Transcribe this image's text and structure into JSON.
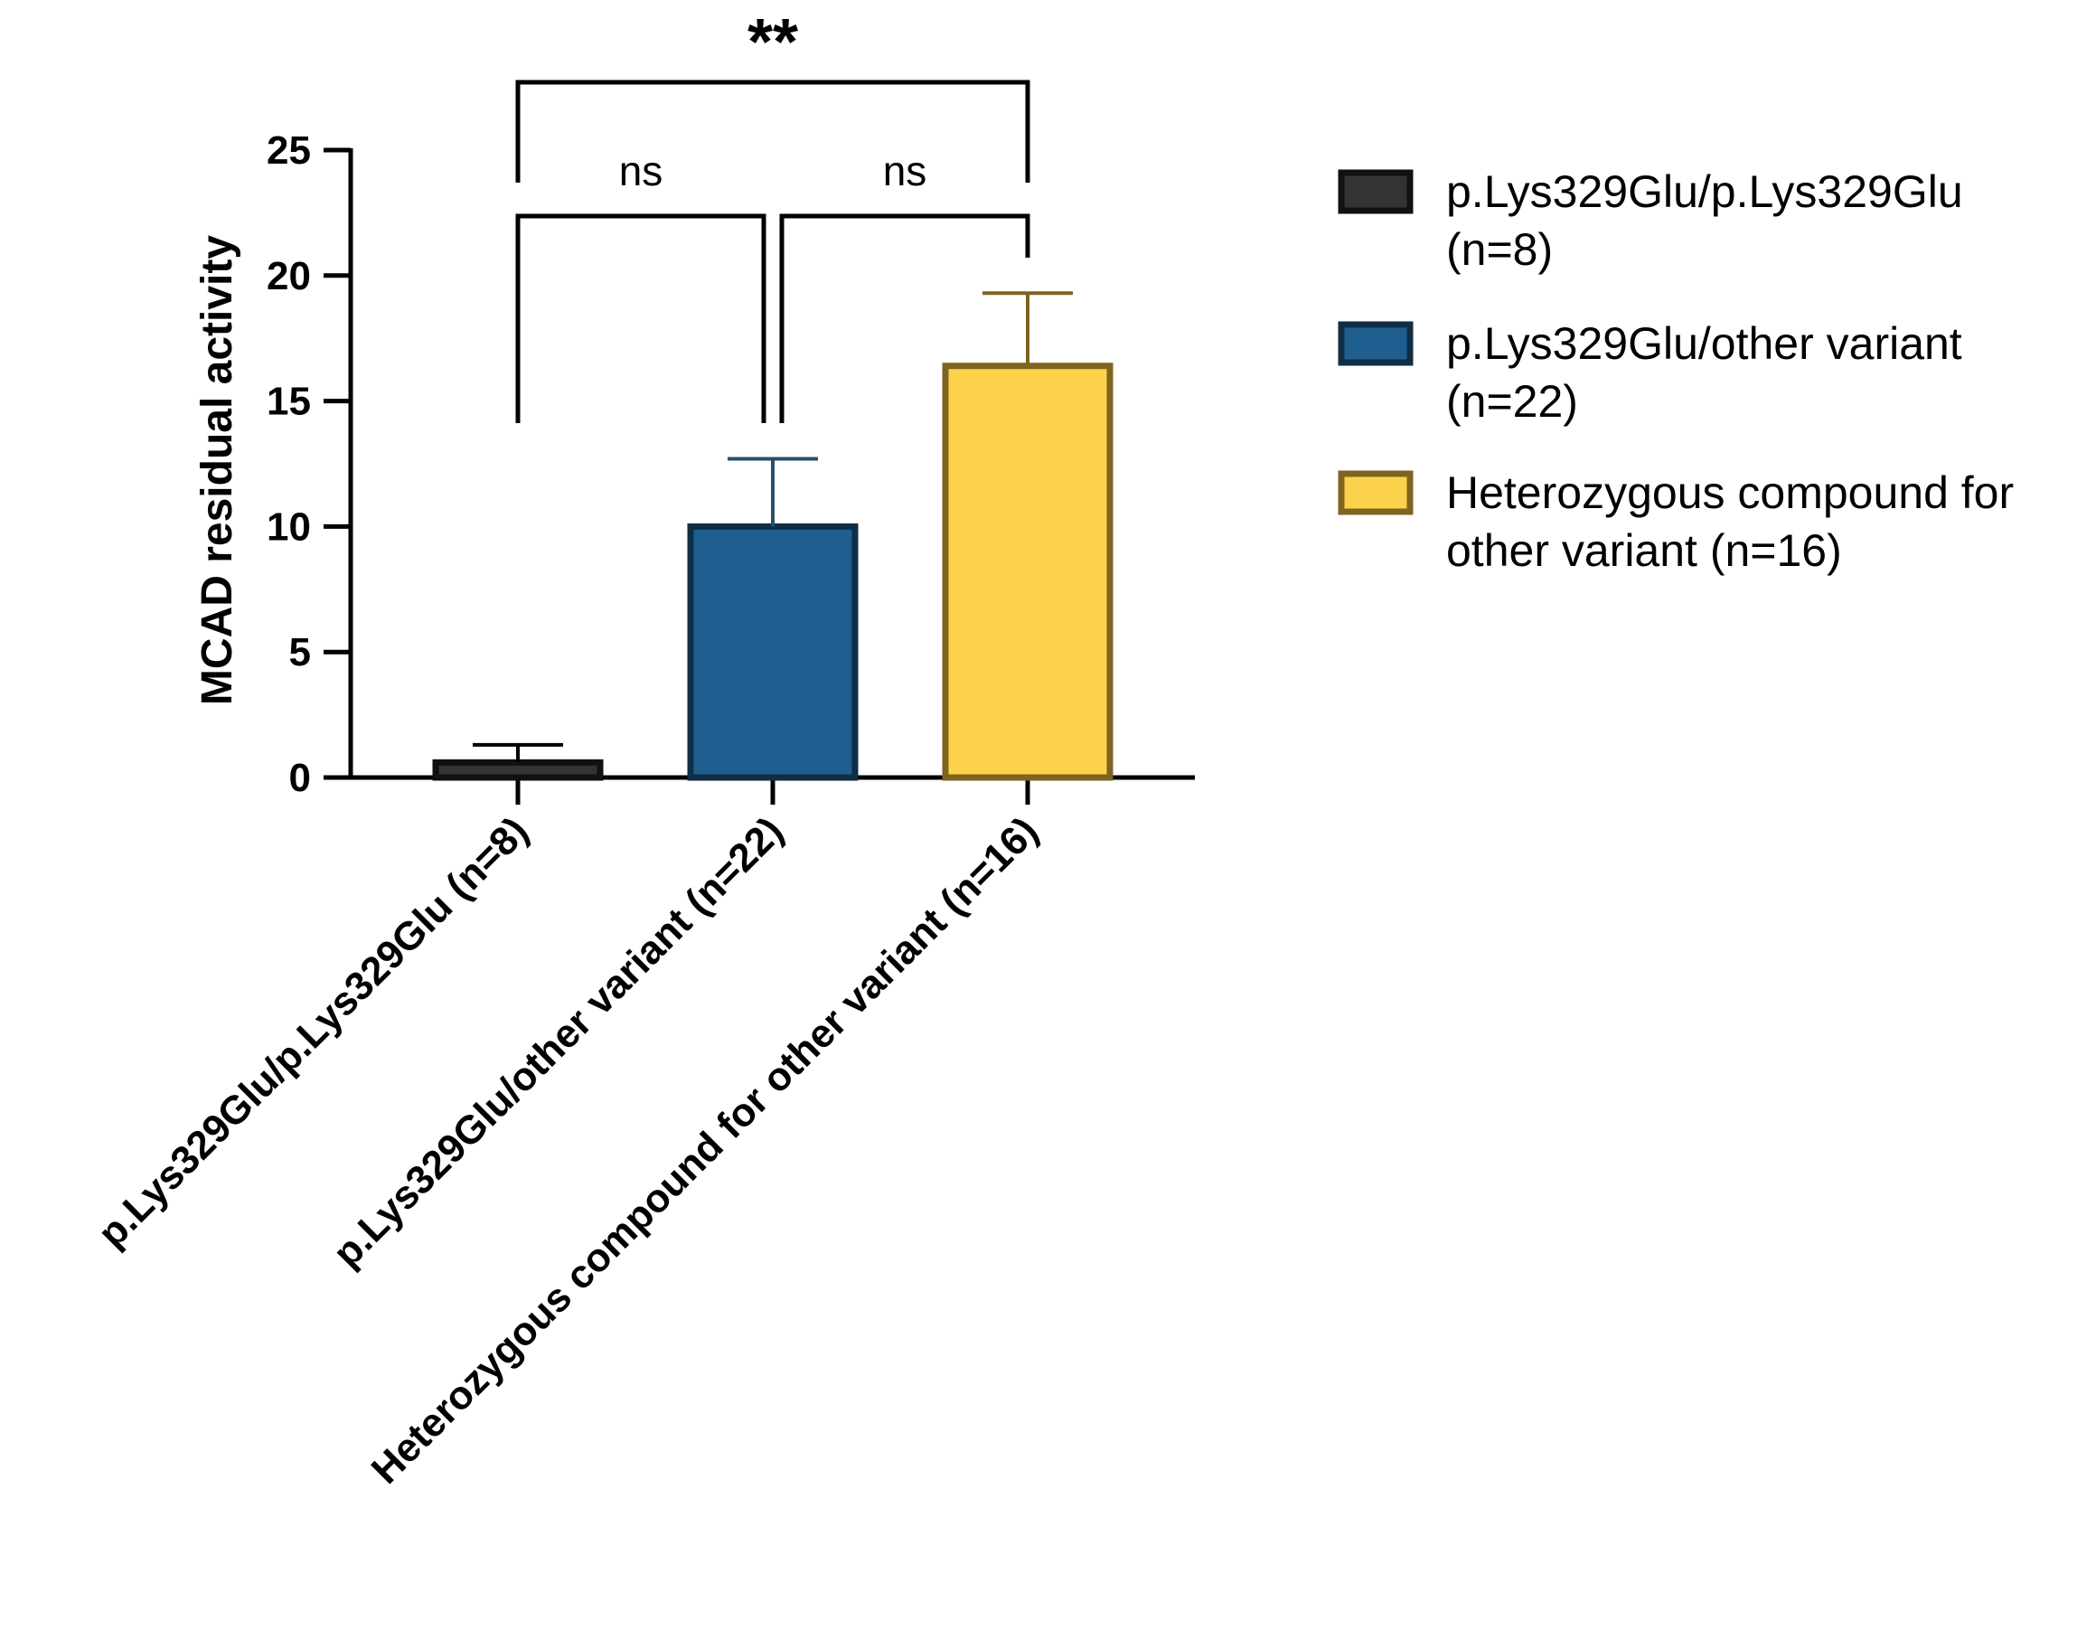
{
  "chart_data": {
    "type": "bar",
    "categories": [
      "p.Lys329Glu/p.Lys329Glu (n=8)",
      "p.Lys329Glu/other variant (n=22)",
      "Heterozygous compound for other variant (n=16)"
    ],
    "values": [
      0.6,
      10.0,
      16.4
    ],
    "error_upper": [
      1.3,
      12.7,
      19.3
    ],
    "colors": [
      "#333333",
      "#1f5f8f",
      "#fcd24d"
    ],
    "edge_colors": [
      "#111111",
      "#0f2e45",
      "#7f6420"
    ],
    "error_colors": [
      "#000000",
      "#2b4f66",
      "#7f6420"
    ],
    "title": "",
    "xlabel": "",
    "ylabel": "MCAD residual activity",
    "ylim": [
      0,
      25
    ],
    "yticks": [
      "0",
      "5",
      "10",
      "15",
      "20",
      "25"
    ],
    "legend_placement": "right",
    "legend": [
      {
        "lines": [
          "p.Lys329Glu/p.Lys329Glu",
          "(n=8)"
        ]
      },
      {
        "lines": [
          "p.Lys329Glu/other variant",
          "(n=22)"
        ]
      },
      {
        "lines": [
          "Heterozygous compound for",
          "other variant (n=16)"
        ]
      }
    ],
    "comparisons": [
      {
        "from": 0,
        "to": 2,
        "label": "**"
      },
      {
        "from": 0,
        "to": 1,
        "label": "ns"
      },
      {
        "from": 1,
        "to": 2,
        "label": "ns"
      }
    ]
  }
}
